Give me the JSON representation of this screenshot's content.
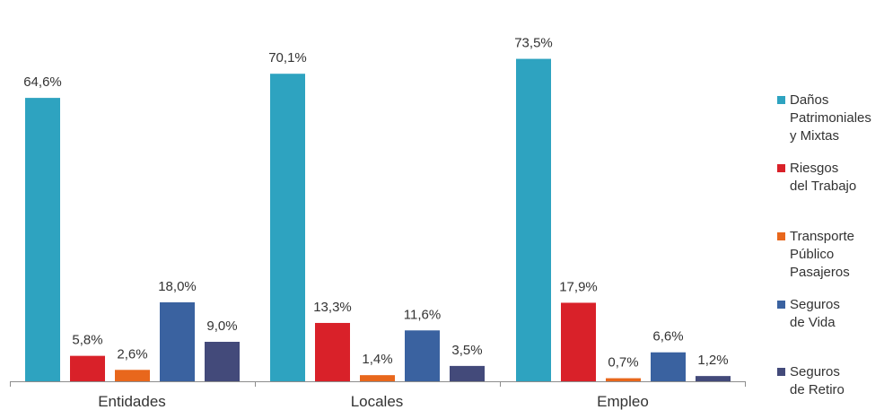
{
  "chart_data": {
    "type": "bar",
    "categories": [
      "Entidades",
      "Locales",
      "Empleo"
    ],
    "series": [
      {
        "name": "Daños Patrimoniales y Mixtas",
        "color": "#2ea3c0",
        "values": [
          64.6,
          70.1,
          73.5
        ],
        "labels": [
          "64,6%",
          "70,1%",
          "73,5%"
        ]
      },
      {
        "name": "Riesgos del Trabajo",
        "color": "#d92129",
        "values": [
          5.8,
          13.3,
          17.9
        ],
        "labels": [
          "5,8%",
          "13,3%",
          "17,9%"
        ]
      },
      {
        "name": "Transporte Público Pasajeros",
        "color": "#e8671c",
        "values": [
          2.6,
          1.4,
          0.7
        ],
        "labels": [
          "2,6%",
          "1,4%",
          "0,7%"
        ]
      },
      {
        "name": "Seguros de Vida",
        "color": "#3a62a0",
        "values": [
          18.0,
          11.6,
          6.6
        ],
        "labels": [
          "18,0%",
          "11,6%",
          "6,6%"
        ]
      },
      {
        "name": "Seguros de Retiro",
        "color": "#434a7a",
        "values": [
          9.0,
          3.5,
          1.2
        ],
        "labels": [
          "9,0%",
          "3,5%",
          "1,2%"
        ]
      }
    ],
    "legend_lines": [
      "Daños\nPatrimoniales\ny Mixtas",
      "Riesgos\ndel Trabajo",
      "Transporte\nPúblico\nPasajeros",
      "Seguros\nde Vida",
      "Seguros\nde Retiro"
    ],
    "ylim": [
      0,
      80
    ],
    "grid": false,
    "legend_position": "right"
  }
}
